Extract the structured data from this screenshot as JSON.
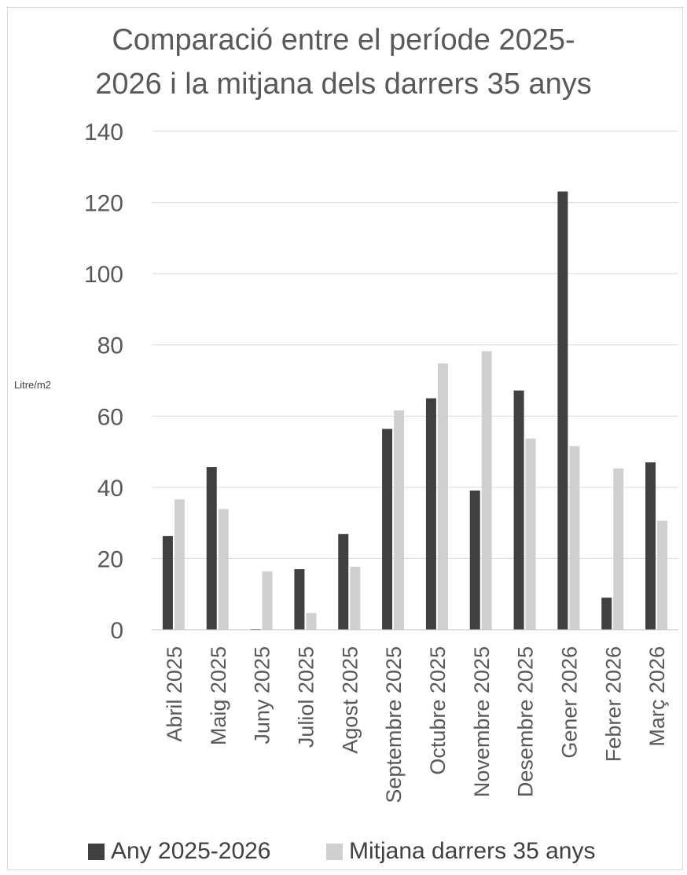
{
  "chart_data": {
    "type": "bar",
    "title_lines": [
      "Comparació entre el període 2025-",
      "2026 i la mitjana dels darrers 35 anys"
    ],
    "ylabel": "Litre/m2",
    "xlabel": "",
    "ylim": [
      0,
      140
    ],
    "yticks": [
      0,
      20,
      40,
      60,
      80,
      100,
      120,
      140
    ],
    "grid": true,
    "legend_position": "bottom",
    "categories": [
      "Abril 2025",
      "Maig 2025",
      "Juny 2025",
      "Juliol 2025",
      "Agost 2025",
      "Septembre 2025",
      "Octubre 2025",
      "Novembre 2025",
      "Desembre 2025",
      "Gener 2026",
      "Febrer 2026",
      "Març 2026"
    ],
    "series": [
      {
        "name": "Any 2025-2026",
        "color": "#404040",
        "values": [
          26.3,
          45.7,
          0.2,
          17.0,
          26.9,
          56.4,
          65.0,
          39.1,
          67.2,
          123.1,
          9.0,
          47.0
        ]
      },
      {
        "name": "Mitjana darrers 35 anys",
        "color": "#d0d0d0",
        "values": [
          36.6,
          33.9,
          16.4,
          4.7,
          17.7,
          61.6,
          74.8,
          78.2,
          53.7,
          51.6,
          45.3,
          30.6
        ]
      }
    ]
  }
}
